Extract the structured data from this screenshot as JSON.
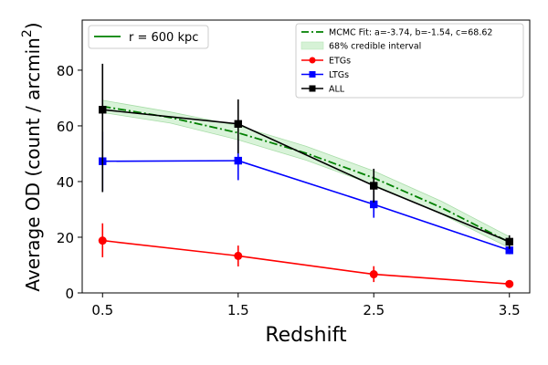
{
  "chart_data": {
    "type": "line",
    "title": "",
    "xlabel": "Redshift",
    "ylabel": {
      "prefix": "Average OD (count / arcmin",
      "sup": "2",
      "suffix": ")"
    },
    "xlim": [
      0.35,
      3.65
    ],
    "ylim": [
      0,
      98
    ],
    "x_ticks": [
      0.5,
      1.5,
      2.5,
      3.5
    ],
    "x_tick_labels": [
      "0.5",
      "1.5",
      "2.5",
      "3.5"
    ],
    "y_ticks": [
      0,
      20,
      40,
      60,
      80
    ],
    "y_tick_labels": [
      "0",
      "20",
      "40",
      "60",
      "80"
    ],
    "grid": false,
    "x": [
      0.5,
      1.5,
      2.5,
      3.5
    ],
    "series": [
      {
        "name": "ETGs",
        "color": "#ff0000",
        "marker": "circle",
        "values": [
          18.8,
          13.3,
          6.7,
          3.2
        ],
        "err_low": [
          6.0,
          3.8,
          2.8,
          0.9
        ],
        "err_high": [
          6.2,
          3.7,
          2.9,
          0.8
        ]
      },
      {
        "name": "LTGs",
        "color": "#0000ff",
        "marker": "square",
        "values": [
          47.3,
          47.5,
          31.8,
          15.3
        ],
        "err_low": [
          10.8,
          7.0,
          4.8,
          1.4
        ],
        "err_high": [
          10.6,
          7.5,
          4.9,
          1.5
        ]
      },
      {
        "name": "ALL",
        "color": "#000000",
        "marker": "square",
        "values": [
          65.8,
          60.7,
          38.5,
          18.4
        ],
        "err_low": [
          29.6,
          10.6,
          6.0,
          2.6
        ],
        "err_high": [
          16.5,
          8.8,
          6.1,
          2.3
        ]
      }
    ],
    "fit": {
      "name": "MCMC Fit: a=-3.74, b=-1.54, c=68.62",
      "color": "#008000",
      "style": "dash-dot",
      "x": [
        0.5,
        1.0,
        1.5,
        2.0,
        2.5,
        3.0,
        3.5
      ],
      "y": [
        67.0,
        63.0,
        57.5,
        50.2,
        41.3,
        30.6,
        18.2
      ],
      "band_low": [
        64.8,
        61.0,
        55.0,
        47.7,
        38.8,
        28.3,
        16.2
      ],
      "band_high": [
        69.2,
        65.0,
        60.0,
        52.7,
        43.8,
        32.9,
        20.2
      ]
    },
    "band_label": "68% credible interval",
    "band_color": "#9fe09f",
    "legend_main": [
      "MCMC Fit: a=-3.74, b=-1.54, c=68.62",
      "68% credible interval",
      "ETGs",
      "LTGs",
      "ALL"
    ],
    "legend_main_position": "top-right",
    "legend_radius": {
      "label": "r = 600 kpc",
      "color": "#008000",
      "position": "top-left"
    }
  }
}
